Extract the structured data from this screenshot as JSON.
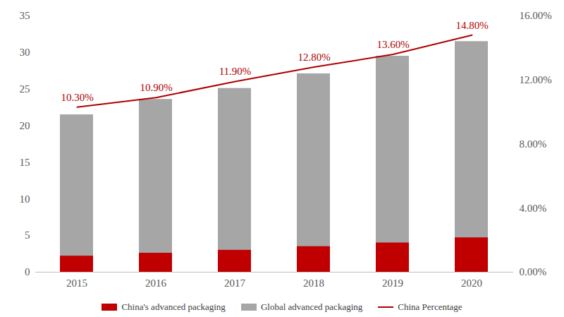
{
  "chart_data": {
    "type": "bar",
    "categories": [
      "2015",
      "2016",
      "2017",
      "2018",
      "2019",
      "2020"
    ],
    "series": [
      {
        "name": "China's advanced packaging",
        "type": "bar",
        "color": "#c00000",
        "values": [
          2.2,
          2.6,
          3.0,
          3.5,
          4.0,
          4.7
        ]
      },
      {
        "name": "Global advanced packaging",
        "type": "bar",
        "color": "#a6a6a6",
        "values": [
          21.5,
          23.6,
          25.1,
          27.1,
          29.5,
          31.5
        ]
      },
      {
        "name": "China Percentage",
        "type": "line",
        "axis": "y2",
        "color": "#b00000",
        "values": [
          10.3,
          10.9,
          11.9,
          12.8,
          13.6,
          14.8
        ],
        "data_labels": true,
        "value_labels": [
          "10.30%",
          "10.90%",
          "11.90%",
          "12.80%",
          "13.60%",
          "14.80%"
        ]
      }
    ],
    "ylim": [
      0,
      35
    ],
    "yticks": [
      0,
      5,
      10,
      15,
      20,
      25,
      30,
      35
    ],
    "y2lim": [
      0,
      16
    ],
    "y2ticks": [
      {
        "value": 0,
        "label": "0.00%"
      },
      {
        "value": 4,
        "label": "4.00%"
      },
      {
        "value": 8,
        "label": "8.00%"
      },
      {
        "value": 12,
        "label": "12.00%"
      },
      {
        "value": 16,
        "label": "16.00%"
      }
    ],
    "stacked": false,
    "grid": false,
    "legend": "bottom"
  }
}
